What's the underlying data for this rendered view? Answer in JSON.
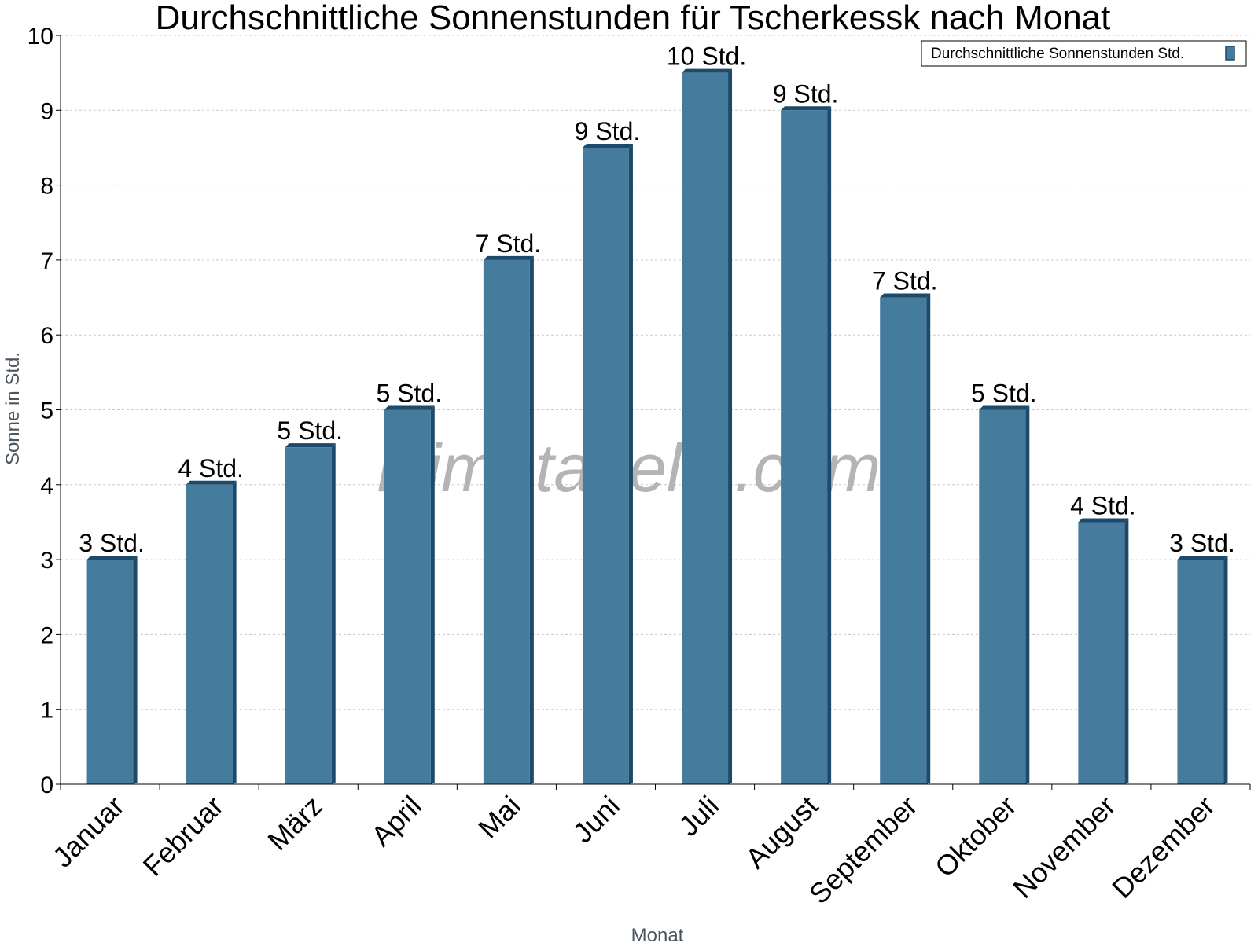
{
  "chart_data": {
    "type": "bar",
    "title": "Durchschnittliche Sonnenstunden für Tscherkessk nach Monat",
    "xlabel": "Monat",
    "ylabel": "Sonne in Std.",
    "ylim": [
      0,
      10
    ],
    "yticks": [
      0,
      1,
      2,
      3,
      4,
      5,
      6,
      7,
      8,
      9,
      10
    ],
    "grid": true,
    "legend_position": "top-right",
    "categories": [
      "Januar",
      "Februar",
      "März",
      "April",
      "Mai",
      "Juni",
      "Juli",
      "August",
      "September",
      "Oktober",
      "November",
      "Dezember"
    ],
    "series": [
      {
        "name": "Durchschnittliche Sonnenstunden Std.",
        "color": "#457b9d",
        "values": [
          3,
          4,
          4.5,
          5,
          7,
          8.5,
          9.5,
          9,
          6.5,
          5,
          3.5,
          3
        ],
        "labels": [
          "3 Std.",
          "4 Std.",
          "5 Std.",
          "5 Std.",
          "7 Std.",
          "9 Std.",
          "10 Std.",
          "9 Std.",
          "7 Std.",
          "5 Std.",
          "4 Std.",
          "3 Std."
        ]
      }
    ]
  },
  "watermark": "klimatabelle.com"
}
